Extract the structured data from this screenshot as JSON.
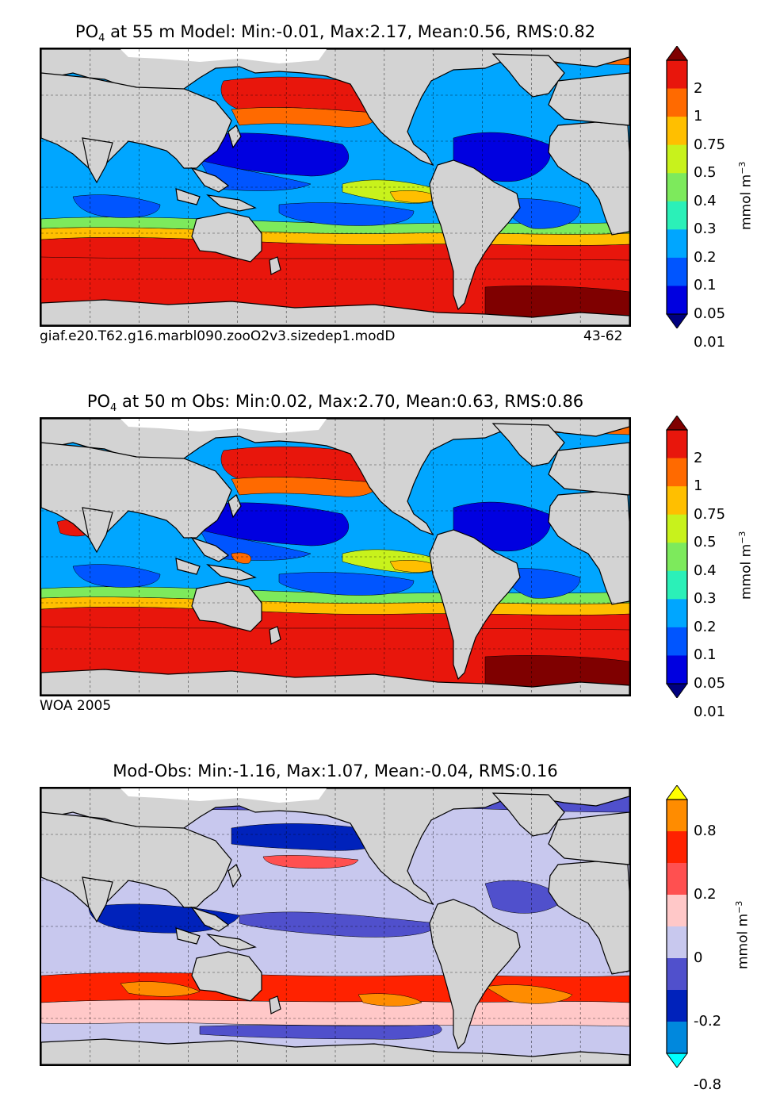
{
  "panels": [
    {
      "id": "model",
      "title_species": "PO",
      "title_sub": "4",
      "title_rest": " at 55 m Model: Min:-0.01, Max:2.17, Mean:0.56, RMS:0.82",
      "caption_left": "giaf.e20.T62.g16.marbl090.zooO2v3.sizedep1.modD",
      "caption_right": "43-62"
    },
    {
      "id": "obs",
      "title_species": "PO",
      "title_sub": "4",
      "title_rest": " at 50 m Obs: Min:0.02, Max:2.70, Mean:0.63, RMS:0.86",
      "caption_left": "WOA 2005",
      "caption_right": ""
    },
    {
      "id": "diff",
      "title_species": "",
      "title_sub": "",
      "title_rest": "Mod-Obs: Min:-1.16, Max:1.07, Mean:-0.04, RMS:0.16",
      "caption_left": "",
      "caption_right": ""
    }
  ],
  "colorbars": {
    "concentration": {
      "units_base": "mmol m",
      "units_exp": "−3",
      "labels": [
        "2",
        "1",
        "0.75",
        "0.5",
        "0.4",
        "0.3",
        "0.2",
        "0.1",
        "0.05",
        "0.01"
      ],
      "colors": [
        "#7f0000",
        "#e8160c",
        "#ff6a00",
        "#ffbf00",
        "#c8f21c",
        "#7dea5c",
        "#2bf0b8",
        "#00a6ff",
        "#0055ff",
        "#0000e0",
        "#00007f"
      ]
    },
    "difference": {
      "units_base": "mmol m",
      "units_exp": "−3",
      "labels": [
        "0.8",
        "0.2",
        "0",
        "-0.2",
        "-0.8"
      ],
      "colors": [
        "#ffff00",
        "#ff8c00",
        "#ff2200",
        "#ff5050",
        "#ffc8c8",
        "#c8c8ee",
        "#5050cc",
        "#0022bb",
        "#0088dd",
        "#00ffff"
      ]
    }
  },
  "map_colors": {
    "land": "#d3d3d3",
    "sea_ice": "#ffffff"
  }
}
